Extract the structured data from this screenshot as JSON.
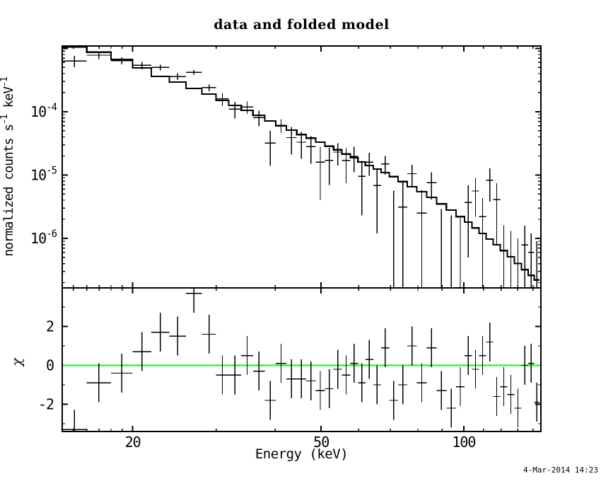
{
  "footer_timestamp": "4-Mar-2014 14:23",
  "colors": {
    "background": "#ffffff",
    "axes": "#000000",
    "data": "#000000",
    "model": "#000000",
    "zero_line": "#00ff00"
  },
  "chart_data": {
    "type": "scatter",
    "title": "data and folded model",
    "subtitle": "",
    "xlabel": "Energy (keV)",
    "x_scale": "log",
    "xlim": [
      14.2,
      145.5
    ],
    "x_ticks_major": [
      20,
      50,
      100
    ],
    "x_tick_labels": [
      "20",
      "50",
      "100"
    ],
    "x_ticks_minor": [
      15,
      16,
      17,
      18,
      19,
      30,
      40,
      60,
      70,
      80,
      90,
      110,
      120,
      130,
      140
    ],
    "grid": "off",
    "legend": "none",
    "top_panel": {
      "ylabel": "normalized counts s-1 keV-1",
      "ylabel_parts": {
        "base1": "normalized counts s",
        "exp1": "-1",
        "base2": " keV",
        "exp2": "-1"
      },
      "y_scale": "log",
      "ylim": [
        1.65e-07,
        0.00109
      ],
      "y_ticks_major": [
        0.001,
        0.0001,
        1e-05,
        1e-06
      ],
      "y_tick_labels": [
        {
          "mantissa": "10",
          "exponent": "-4",
          "value": 0.0001
        },
        {
          "mantissa": "10",
          "exponent": "-5",
          "value": 1e-05
        },
        {
          "mantissa": "10",
          "exponent": "-6",
          "value": 1e-06
        }
      ],
      "y_ticks_minor": [
        2e-07,
        3e-07,
        4e-07,
        5e-07,
        6e-07,
        7e-07,
        8e-07,
        9e-07,
        2e-06,
        3e-06,
        4e-06,
        5e-06,
        6e-06,
        7e-06,
        8e-06,
        9e-06,
        2e-05,
        3e-05,
        4e-05,
        5e-05,
        6e-05,
        7e-05,
        8e-05,
        9e-05,
        0.0002,
        0.0003,
        0.0004,
        0.0005,
        0.0006,
        0.0007,
        0.0008,
        0.0009
      ]
    },
    "bottom_panel": {
      "ylabel": "χ",
      "y_scale": "linear",
      "ylim": [
        -3.4,
        3.98
      ],
      "y_ticks_major": [
        2,
        0,
        -2
      ],
      "y_tick_labels": [
        "2",
        "0",
        "-2"
      ],
      "y_ticks_minor": [
        3,
        1,
        -1,
        -3
      ],
      "zero_line_value": 0
    },
    "bins": {
      "e_edges": [
        14.2,
        16.0,
        18.0,
        20.0,
        21.9,
        23.9,
        25.9,
        28.0,
        30.0,
        31.9,
        33.9,
        35.9,
        38.0,
        40.1,
        42.2,
        44.4,
        46.5,
        48.7,
        50.9,
        53.1,
        55.3,
        57.6,
        59.8,
        62.0,
        64.4,
        66.9,
        69.6,
        72.7,
        76.0,
        79.6,
        83.5,
        87.6,
        91.9,
        96.3,
        100.4,
        104.1,
        107.7,
        111.5,
        115.4,
        119.4,
        123.6,
        127.9,
        132.4,
        136.8,
        140.8,
        144.5
      ],
      "data": [
        0.00063,
        0.00078,
        0.00064,
        0.00054,
        0.0005,
        0.00036,
        0.00042,
        0.00024,
        0.00016,
        0.00011,
        0.000118,
        8.1e-05,
        3.2e-05,
        6.1e-05,
        3.9e-05,
        3.3e-05,
        2.8e-05,
        1.6e-05,
        1.7e-05,
        2.3e-05,
        1.7e-05,
        1.95e-05,
        9.5e-06,
        1.6e-05,
        6.8e-06,
        1.5e-05,
        1e-07,
        3.1e-06,
        1.05e-05,
        2.5e-06,
        7.6e-06,
        1e-07,
        1e-07,
        1e-07,
        3.7e-06,
        5.6e-06,
        2.2e-06,
        8.3e-06,
        4.1e-06,
        1e-07,
        1e-07,
        1e-07,
        7.9e-07,
        6e-07,
        1e-07
      ],
      "data_err": [
        0.000126,
        0.000104,
        8e-05,
        7.4e-05,
        5.4e-05,
        4.4e-05,
        3.5e-05,
        2.9e-05,
        3.8e-05,
        3.2e-05,
        2.6e-05,
        2.2e-05,
        1.8e-05,
        1.5e-05,
        1.8e-05,
        1.5e-05,
        1.3e-05,
        1.2e-05,
        1e-05,
        8.8e-06,
        9.6e-06,
        8.4e-06,
        7.2e-06,
        6.3e-06,
        5.6e-06,
        4.9e-06,
        5.6e-06,
        4.7e-06,
        3.9e-06,
        3.3e-06,
        3.5e-06,
        2.8e-06,
        2.2e-06,
        2e-06,
        3.2e-06,
        3.4e-06,
        2.1e-06,
        4.5e-06,
        3.3e-06,
        1.5e-06,
        1.2e-06,
        9e-07,
        7.9e-07,
        6e-07,
        8e-07
      ],
      "model": [
        0.00105,
        0.00087,
        0.00067,
        0.00049,
        0.00036,
        0.000294,
        0.000233,
        0.00019,
        0.000151,
        0.000126,
        0.000105,
        8.8e-05,
        7.15e-05,
        5.95e-05,
        5.1e-05,
        4.35e-05,
        3.83e-05,
        3.3e-05,
        2.84e-05,
        2.5e-05,
        2.14e-05,
        1.87e-05,
        1.6e-05,
        1.41e-05,
        1.24e-05,
        1.09e-05,
        9.4e-06,
        7.85e-06,
        6.55e-06,
        5.45e-06,
        4.43e-06,
        3.5e-06,
        2.8e-06,
        2.2e-06,
        1.8e-06,
        1.46e-06,
        1.2e-06,
        9.7e-07,
        7.9e-07,
        6.4e-07,
        5.1e-07,
        4e-07,
        3.2e-07,
        2.6e-07,
        2.2e-07
      ],
      "chi": [
        -3.3,
        -0.9,
        -0.4,
        0.7,
        1.7,
        1.5,
        3.7,
        1.6,
        -0.5,
        -0.5,
        0.5,
        -0.3,
        -1.8,
        0.1,
        -0.7,
        -0.7,
        -0.8,
        -1.3,
        -1.2,
        -0.2,
        -0.5,
        0.1,
        -0.9,
        0.3,
        -1.0,
        0.9,
        -1.8,
        -1.0,
        1.0,
        -0.9,
        0.9,
        -1.3,
        -2.2,
        -1.1,
        0.5,
        -0.2,
        0.5,
        1.2,
        -1.6,
        -1.1,
        -1.5,
        -2.2,
        0.0,
        0.1,
        -1.9
      ],
      "chi_err": 1.0
    }
  }
}
